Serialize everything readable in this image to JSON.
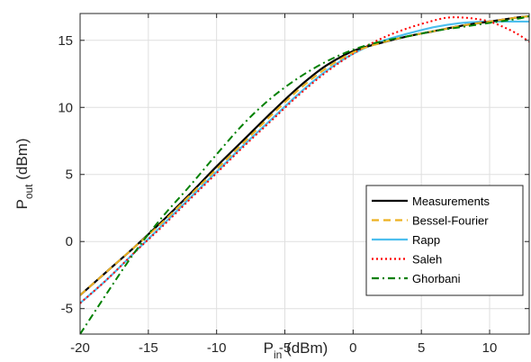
{
  "chart_data": {
    "type": "line",
    "xlabel_main": "P",
    "xlabel_sub": "in",
    "xlabel_unit": " (dBm)",
    "ylabel_main": "P",
    "ylabel_sub": "out",
    "ylabel_unit": " (dBm)",
    "xlim": [
      -20,
      12.9
    ],
    "ylim": [
      -6.9,
      17.0
    ],
    "xticks": [
      -20,
      -15,
      -10,
      -5,
      0,
      5,
      10
    ],
    "yticks": [
      -5,
      0,
      5,
      10,
      15
    ],
    "grid": true,
    "legend_position": "bottom-right",
    "series": [
      {
        "name": "Measurements",
        "color": "#000000",
        "dash": "solid",
        "x": [
          -20,
          -18,
          -16,
          -14,
          -12,
          -10,
          -8,
          -6,
          -4,
          -2,
          0,
          2,
          4,
          6,
          8,
          10,
          12,
          12.9
        ],
        "y": [
          -4.0,
          -2.2,
          -0.4,
          1.5,
          3.5,
          5.6,
          7.6,
          9.6,
          11.5,
          13.1,
          14.2,
          14.8,
          15.3,
          15.7,
          16.1,
          16.4,
          16.7,
          16.8
        ]
      },
      {
        "name": "Bessel-Fourier",
        "color": "#EDB120",
        "dash": "dashed",
        "x": [
          -20,
          -18,
          -16,
          -14,
          -12,
          -10,
          -8,
          -6,
          -4,
          -2,
          0,
          2,
          4,
          6,
          8,
          10,
          12,
          12.9
        ],
        "y": [
          -4.0,
          -2.2,
          -0.4,
          1.4,
          3.4,
          5.4,
          7.4,
          9.4,
          11.3,
          12.9,
          14.1,
          14.8,
          15.3,
          15.7,
          16.1,
          16.4,
          16.7,
          16.8
        ]
      },
      {
        "name": "Rapp",
        "color": "#4DBEEE",
        "dash": "solid",
        "x": [
          -20,
          -18,
          -16,
          -14,
          -12,
          -10,
          -8,
          -6,
          -4,
          -2,
          0,
          2,
          4,
          6,
          8,
          10,
          12,
          12.9
        ],
        "y": [
          -4.6,
          -2.8,
          -0.8,
          1.2,
          3.2,
          5.2,
          7.2,
          9.1,
          11.0,
          12.7,
          14.0,
          14.9,
          15.5,
          16.0,
          16.3,
          16.4,
          16.4,
          16.4
        ]
      },
      {
        "name": "Saleh",
        "color": "#FF0000",
        "dash": "dotted",
        "x": [
          -20,
          -18,
          -16,
          -14,
          -12,
          -10,
          -8,
          -6,
          -4,
          -2,
          0,
          2,
          4,
          6,
          7,
          8,
          9,
          10,
          11,
          12,
          12.9
        ],
        "y": [
          -4.6,
          -2.8,
          -0.8,
          1.1,
          3.1,
          5.1,
          7.1,
          9.0,
          10.9,
          12.6,
          14.0,
          15.1,
          15.9,
          16.5,
          16.7,
          16.7,
          16.6,
          16.4,
          16.0,
          15.5,
          14.9
        ]
      },
      {
        "name": "Ghorbani",
        "color": "#008000",
        "dash": "dashdot",
        "x": [
          -20,
          -18,
          -16,
          -14,
          -12,
          -10,
          -8,
          -6,
          -4,
          -2,
          0,
          2,
          4,
          6,
          8,
          10,
          12,
          12.9
        ],
        "y": [
          -6.9,
          -3.8,
          -0.8,
          1.8,
          4.1,
          6.5,
          8.8,
          10.7,
          12.2,
          13.4,
          14.3,
          14.9,
          15.3,
          15.7,
          16.0,
          16.3,
          16.6,
          16.8
        ]
      }
    ]
  }
}
